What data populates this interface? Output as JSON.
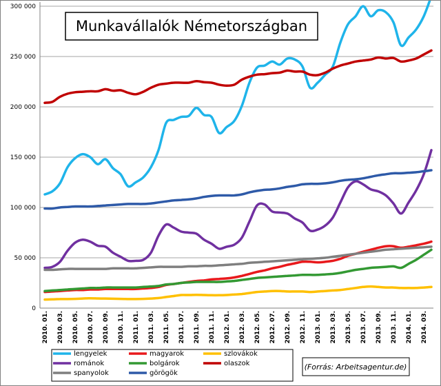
{
  "chart_data": {
    "type": "line",
    "title": "Munkavállalók Németországban",
    "source": "(Forrás:  Arbeitsagentur.de)",
    "ylim": [
      0,
      300000
    ],
    "y_ticks": [
      0,
      50000,
      100000,
      150000,
      200000,
      250000,
      300000
    ],
    "y_tick_labels": [
      "0",
      "50 000",
      "100 000",
      "150 000",
      "200 000",
      "250 000",
      "300 000"
    ],
    "grid": true,
    "legend_position": "bottom",
    "x_tick_labels": [
      "2010. 01.",
      "2010. 03.",
      "2010. 05.",
      "2010. 07.",
      "2010. 09.",
      "2010. 11.",
      "2011. 01.",
      "2011. 03.",
      "2011. 05.",
      "2011. 07.",
      "2011. 09.",
      "2011. 11.",
      "2012. 01.",
      "2012. 03.",
      "2012. 05.",
      "2012. 07.",
      "2012. 09.",
      "2012. 11.",
      "2013. 01.",
      "2013. 03.",
      "2013. 05.",
      "2013. 07.",
      "2013. 09.",
      "2013. 11.",
      "2014. 01.",
      "2014. 03."
    ],
    "x": [
      "2010. 01.",
      "2010. 02.",
      "2010. 03.",
      "2010. 04.",
      "2010. 05.",
      "2010. 06.",
      "2010. 07.",
      "2010. 08.",
      "2010. 09.",
      "2010. 10.",
      "2010. 11.",
      "2010. 12.",
      "2011. 01.",
      "2011. 02.",
      "2011. 03.",
      "2011. 04.",
      "2011. 05.",
      "2011. 06.",
      "2011. 07.",
      "2011. 08.",
      "2011. 09.",
      "2011. 10.",
      "2011. 11.",
      "2011. 12.",
      "2012. 01.",
      "2012. 02.",
      "2012. 03.",
      "2012. 04.",
      "2012. 05.",
      "2012. 06.",
      "2012. 07.",
      "2012. 08.",
      "2012. 09.",
      "2012. 10.",
      "2012. 11.",
      "2012. 12.",
      "2013. 01.",
      "2013. 02.",
      "2013. 03.",
      "2013. 04.",
      "2013. 05.",
      "2013. 06.",
      "2013. 07.",
      "2013. 08.",
      "2013. 09.",
      "2013. 10.",
      "2013. 11.",
      "2013. 12.",
      "2014. 01.",
      "2014. 02.",
      "2014. 03.",
      "2014. 04."
    ],
    "series": [
      {
        "name": "lengyelek",
        "color": "#1fb4ea",
        "values": [
          113000,
          116000,
          124000,
          140000,
          149000,
          153000,
          150000,
          143000,
          148000,
          139000,
          133000,
          121000,
          125000,
          130000,
          140000,
          157000,
          184000,
          187000,
          190000,
          191000,
          199000,
          192000,
          190000,
          174000,
          180000,
          186000,
          201000,
          224000,
          239000,
          241000,
          245000,
          242000,
          248000,
          247000,
          240000,
          219000,
          224000,
          232000,
          240000,
          264000,
          282000,
          290000,
          300000,
          290000,
          296000,
          294000,
          284000,
          261000,
          269000,
          277000,
          290000,
          310000
        ]
      },
      {
        "name": "magyarok",
        "color": "#e8191c",
        "values": [
          16000,
          16500,
          17000,
          17500,
          18000,
          18000,
          18500,
          18500,
          19000,
          19000,
          19000,
          19000,
          19000,
          19500,
          20000,
          21000,
          23000,
          24000,
          25000,
          26000,
          27000,
          27500,
          28500,
          29000,
          29500,
          30500,
          32000,
          34000,
          36000,
          37500,
          39500,
          41000,
          43000,
          44500,
          46000,
          46000,
          45500,
          46000,
          47000,
          49000,
          52000,
          54000,
          56000,
          58000,
          60000,
          61500,
          61500,
          60000,
          61000,
          62500,
          64000,
          66000
        ]
      },
      {
        "name": "szlovákok",
        "color": "#ffc000",
        "values": [
          8500,
          8700,
          9000,
          9000,
          9200,
          9500,
          9800,
          9600,
          9500,
          9300,
          9200,
          9000,
          9000,
          9200,
          9500,
          10000,
          11000,
          12000,
          13000,
          13000,
          13200,
          13000,
          12800,
          12800,
          13000,
          13500,
          14000,
          15000,
          16000,
          16500,
          17000,
          17000,
          16500,
          16500,
          16500,
          16000,
          16500,
          17000,
          17500,
          18000,
          19000,
          20000,
          21000,
          21500,
          21000,
          20500,
          20500,
          20000,
          20000,
          20000,
          20500,
          21000
        ]
      },
      {
        "name": "románok",
        "color": "#7030a0",
        "values": [
          40000,
          41000,
          46000,
          57000,
          65000,
          68000,
          66000,
          62000,
          61000,
          55000,
          51000,
          47000,
          47000,
          48000,
          55000,
          72000,
          83000,
          80000,
          76000,
          75000,
          74000,
          68000,
          64000,
          59000,
          61000,
          63000,
          70000,
          86000,
          102000,
          103000,
          96000,
          95000,
          94000,
          89000,
          85000,
          77000,
          78000,
          82000,
          90000,
          105000,
          120000,
          126000,
          123000,
          118000,
          116000,
          112000,
          104000,
          94000,
          105000,
          117000,
          133000,
          157000
        ]
      },
      {
        "name": "bolgárok",
        "color": "#339933",
        "values": [
          17000,
          17500,
          18000,
          18500,
          19000,
          19500,
          20000,
          20000,
          20500,
          20500,
          20500,
          20500,
          20500,
          21000,
          21500,
          22000,
          23500,
          24000,
          25000,
          25500,
          26000,
          26000,
          26000,
          26000,
          26500,
          27000,
          28000,
          29000,
          30000,
          30500,
          31000,
          31500,
          32000,
          32500,
          33000,
          33000,
          33000,
          33500,
          34000,
          35000,
          36500,
          38000,
          39000,
          40000,
          40500,
          41000,
          41500,
          40000,
          44000,
          48000,
          53000,
          58000
        ]
      },
      {
        "name": "olaszok",
        "color": "#c00000",
        "values": [
          204000,
          205000,
          210000,
          213000,
          214500,
          215000,
          215500,
          215500,
          217500,
          216000,
          216500,
          214000,
          212500,
          215000,
          219000,
          222000,
          223000,
          224000,
          224000,
          224000,
          225500,
          224500,
          224000,
          222000,
          221000,
          222000,
          227000,
          230000,
          232000,
          232500,
          233500,
          234000,
          236000,
          235000,
          235000,
          232000,
          231500,
          234000,
          238000,
          241000,
          243000,
          245000,
          246000,
          247000,
          249000,
          248000,
          248500,
          245000,
          246000,
          248000,
          252000,
          256000
        ]
      },
      {
        "name": "spanyolok",
        "color": "#7f7f7f",
        "values": [
          38000,
          38000,
          38500,
          39000,
          39000,
          39000,
          39000,
          39000,
          39000,
          39500,
          39500,
          39500,
          39500,
          40000,
          40500,
          41000,
          41000,
          41000,
          41000,
          41500,
          41500,
          42000,
          42000,
          42500,
          43000,
          43500,
          44000,
          45000,
          45500,
          46000,
          46500,
          47000,
          47500,
          48000,
          48500,
          49000,
          49500,
          50000,
          51000,
          52000,
          53000,
          54000,
          55000,
          56000,
          57000,
          58000,
          58500,
          59000,
          59500,
          60000,
          60500,
          61000
        ]
      },
      {
        "name": "görögök",
        "color": "#2e5aa8",
        "values": [
          99000,
          99000,
          100000,
          100500,
          101000,
          101000,
          101000,
          101500,
          102000,
          102500,
          103000,
          103500,
          103500,
          103500,
          104000,
          105000,
          106000,
          107000,
          107500,
          108000,
          109000,
          110500,
          111500,
          112000,
          112000,
          112000,
          113000,
          115000,
          116500,
          117500,
          118000,
          119000,
          120500,
          121500,
          123000,
          123500,
          123500,
          124000,
          125000,
          126500,
          127500,
          128000,
          129000,
          130500,
          132000,
          133000,
          134000,
          134000,
          134500,
          135000,
          136000,
          137000
        ]
      }
    ]
  }
}
